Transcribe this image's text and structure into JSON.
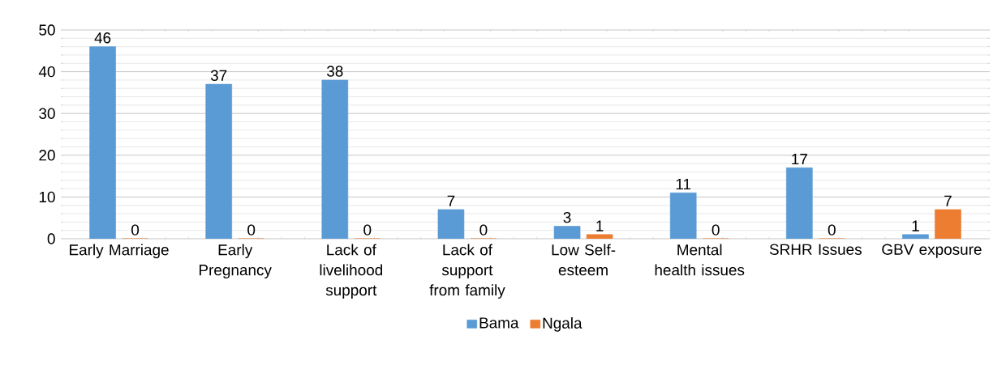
{
  "chart_data": {
    "type": "bar",
    "categories": [
      "Early Marriage",
      "Early Pregnancy",
      "Lack of livelihood support",
      "Lack of support from family",
      "Low Self-esteem",
      "Mental health issues",
      "SRHR Issues",
      "GBV exposure"
    ],
    "series": [
      {
        "name": "Bama",
        "color": "#5b9bd5",
        "values": [
          46,
          37,
          38,
          7,
          3,
          11,
          17,
          1
        ]
      },
      {
        "name": "Ngala",
        "color": "#ed7d31",
        "values": [
          0,
          0,
          0,
          0,
          1,
          0,
          0,
          7
        ]
      }
    ],
    "ylim": [
      0,
      50
    ],
    "yticks": [
      0,
      10,
      20,
      30,
      40,
      50
    ],
    "grid": "y",
    "legend": "bottom",
    "data_labels": true
  }
}
